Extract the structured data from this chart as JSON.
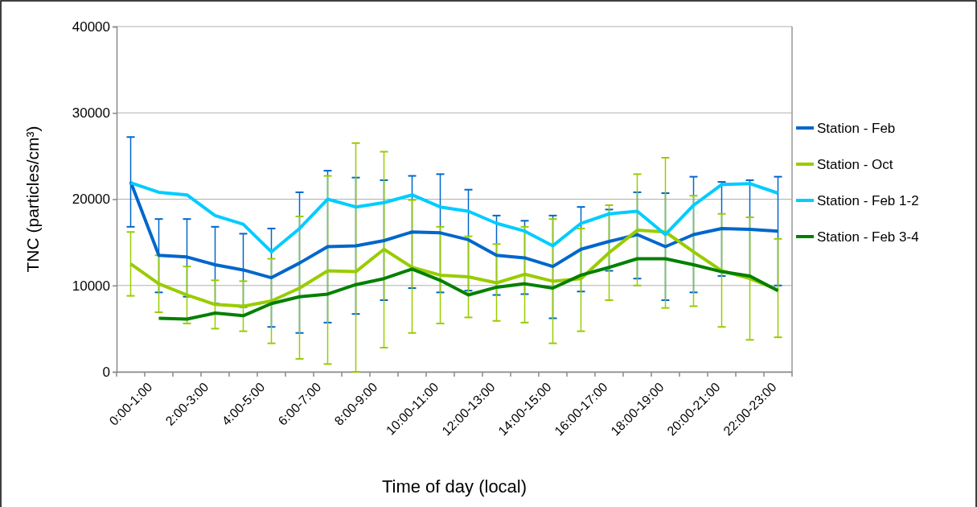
{
  "chart_data": {
    "type": "line",
    "xlabel": "Time of day (local)",
    "ylabel": "TNC (particles/cm³)",
    "categories": [
      "0:00-1:00",
      null,
      "2:00-3:00",
      null,
      "4:00-5:00",
      null,
      "6:00-7:00",
      null,
      "8:00-9:00",
      null,
      "10:00-11:00",
      null,
      "12:00-13:00",
      null,
      "14:00-15:00",
      null,
      "16:00-17:00",
      null,
      "18:00-19:00",
      null,
      "20:00-21:00",
      null,
      "22:00-23:00",
      null
    ],
    "ylim": [
      0,
      40000
    ],
    "yticks": [
      0,
      10000,
      20000,
      30000,
      40000
    ],
    "grid": "y",
    "legend": "right",
    "marker": "none",
    "line_style": "solid",
    "series": [
      {
        "name": "Station - Feb",
        "color": "#0066cc",
        "values": [
          22000,
          13500,
          13300,
          12400,
          11800,
          10900,
          12600,
          14500,
          14600,
          15200,
          16200,
          16100,
          15300,
          13500,
          13200,
          12200,
          14200,
          15100,
          15900,
          14500,
          15900,
          16600,
          16500,
          16300
        ],
        "errors": [
          [
            16800,
            27200
          ],
          [
            9200,
            17700
          ],
          [
            8700,
            17700
          ],
          [
            7900,
            16800
          ],
          [
            7500,
            16000
          ],
          [
            5200,
            16600
          ],
          [
            4500,
            20800
          ],
          [
            5700,
            23300
          ],
          [
            6700,
            22500
          ],
          [
            8300,
            22200
          ],
          [
            9700,
            22700
          ],
          [
            9200,
            22900
          ],
          [
            9400,
            21100
          ],
          [
            8900,
            18100
          ],
          [
            9000,
            17500
          ],
          [
            6200,
            18100
          ],
          [
            9300,
            19100
          ],
          [
            11700,
            18800
          ],
          [
            10800,
            20800
          ],
          [
            8300,
            20700
          ],
          [
            9200,
            22600
          ],
          [
            11100,
            22000
          ],
          [
            10900,
            22200
          ],
          [
            10000,
            22600
          ]
        ]
      },
      {
        "name": "Station - Oct",
        "color": "#99cc00",
        "values": [
          12500,
          10200,
          8900,
          7800,
          7600,
          8200,
          9700,
          11700,
          11600,
          14200,
          12100,
          11200,
          11000,
          10300,
          11300,
          10500,
          10800,
          13800,
          16400,
          16200,
          13900,
          11700,
          10800,
          9500
        ],
        "errors": [
          [
            8800,
            16200
          ],
          [
            6900,
            13500
          ],
          [
            5600,
            12200
          ],
          [
            5000,
            10600
          ],
          [
            4700,
            10500
          ],
          [
            3300,
            13100
          ],
          [
            1500,
            18000
          ],
          [
            900,
            22700
          ],
          [
            0,
            26500
          ],
          [
            2800,
            25500
          ],
          [
            4500,
            19900
          ],
          [
            5600,
            16800
          ],
          [
            6300,
            15700
          ],
          [
            5900,
            14800
          ],
          [
            5700,
            16800
          ],
          [
            3300,
            17700
          ],
          [
            4700,
            16600
          ],
          [
            8300,
            19300
          ],
          [
            10000,
            22900
          ],
          [
            7400,
            24800
          ],
          [
            7600,
            20400
          ],
          [
            5200,
            18300
          ],
          [
            3700,
            17900
          ],
          [
            4000,
            15400
          ]
        ]
      },
      {
        "name": "Station - Feb 1-2",
        "color": "#00ccff",
        "values": [
          21900,
          20800,
          20500,
          18100,
          17100,
          13900,
          16600,
          20000,
          19100,
          19600,
          20500,
          19100,
          18600,
          17200,
          16300,
          14600,
          17200,
          18300,
          18600,
          15900,
          19300,
          21700,
          21800,
          20700
        ]
      },
      {
        "name": "Station - Feb 3-4",
        "color": "#008000",
        "values": [
          null,
          6200,
          6100,
          6800,
          6500,
          7900,
          8700,
          9000,
          10100,
          10800,
          11900,
          10600,
          8900,
          9800,
          10200,
          9700,
          11200,
          12100,
          13100,
          13100,
          12400,
          11600,
          11100,
          9400
        ]
      }
    ]
  }
}
